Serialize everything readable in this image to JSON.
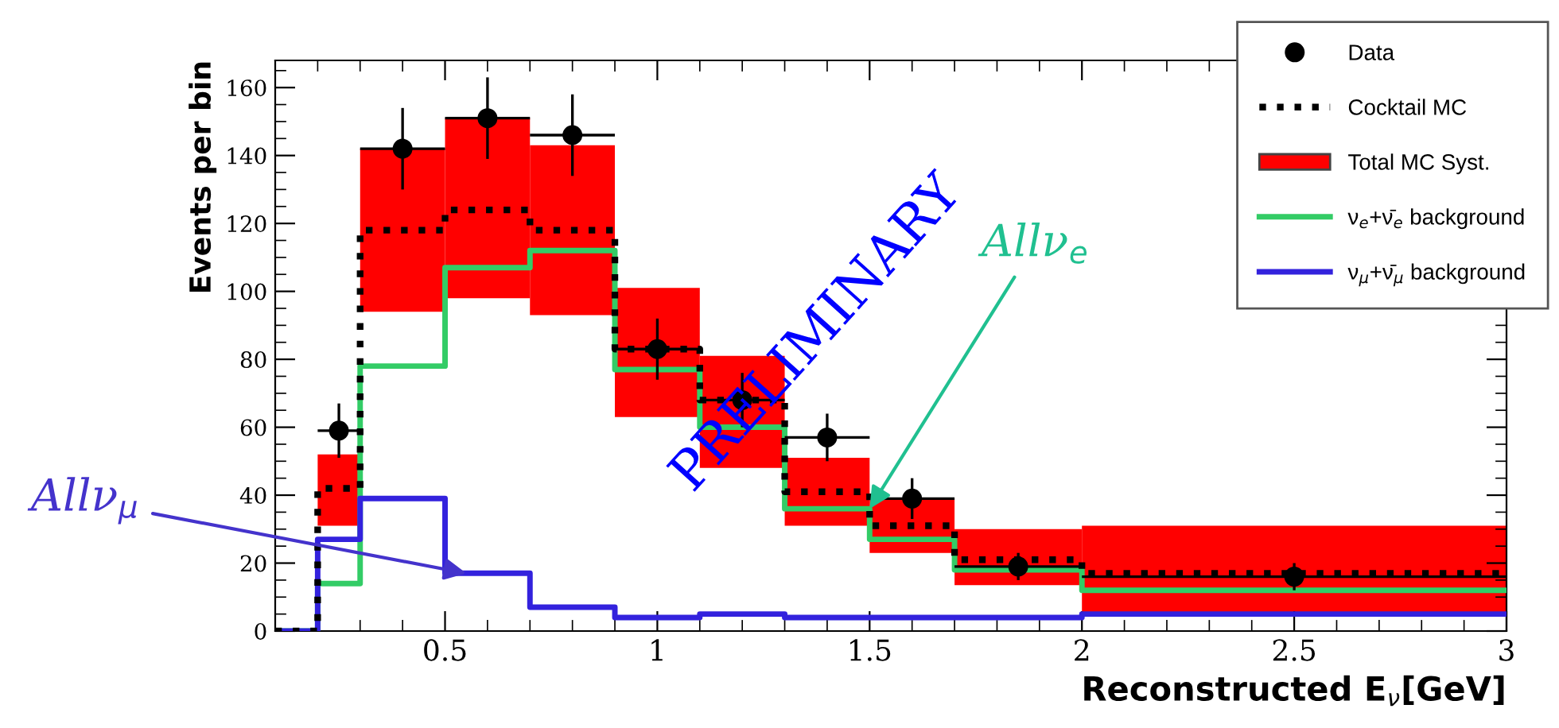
{
  "chart_data": {
    "type": "histogram",
    "xlabel": "Reconstructed E$_{ν}$[GeV]",
    "ylabel": "Events per bin",
    "bins": [
      0.2,
      0.3,
      0.5,
      0.7,
      0.9,
      1.1,
      1.3,
      1.5,
      1.7,
      2.0,
      3.0
    ],
    "xlim": [
      0.1,
      3
    ],
    "xticks": [
      0.5,
      1,
      1.5,
      2,
      2.5,
      3
    ],
    "ylim": [
      0,
      168
    ],
    "yticks": [
      0,
      20,
      40,
      60,
      80,
      100,
      120,
      140,
      160
    ],
    "grid": false,
    "legend": "top right",
    "series": [
      {
        "name": "Data",
        "type": "scatter",
        "color": "#000000",
        "marker": "circle",
        "x": [
          0.25,
          0.4,
          0.6,
          0.8,
          1.0,
          1.2,
          1.4,
          1.6,
          1.85,
          2.5
        ],
        "values": [
          59,
          142,
          151,
          146,
          83,
          68,
          57,
          39,
          19,
          16
        ],
        "errors": [
          8,
          12,
          12,
          12,
          9,
          8,
          7,
          6,
          4,
          4
        ],
        "xerrors": [
          0.05,
          0.1,
          0.1,
          0.1,
          0.1,
          0.1,
          0.1,
          0.1,
          0.15,
          0.5
        ]
      },
      {
        "name": "Cocktail MC",
        "type": "step",
        "color": "#000000",
        "line_style": "dotted",
        "x": [
          0.1,
          0.2,
          0.3,
          0.5,
          0.7,
          0.9,
          1.1,
          1.3,
          1.5,
          1.7,
          2.0,
          3.0
        ],
        "values": [
          0,
          42,
          118,
          124,
          118,
          83,
          68,
          41,
          31,
          21,
          17,
          17
        ]
      },
      {
        "name": "Total MC Syst.",
        "type": "histogram",
        "color": "#ff0000",
        "base": [
          31,
          94,
          98,
          93,
          63,
          48,
          31,
          23,
          13.5,
          5
        ],
        "values": [
          21,
          48,
          53,
          50,
          38,
          33,
          20,
          16,
          16.5,
          26
        ]
      },
      {
        "name": "ν$_{e}$+ν̄$_{e}$ background",
        "type": "step",
        "color": "#33cc66",
        "line_style": "solid",
        "x": [
          0.1,
          0.2,
          0.3,
          0.5,
          0.7,
          0.9,
          1.1,
          1.3,
          1.5,
          1.7,
          2.0,
          3.0
        ],
        "values": [
          0,
          14,
          78,
          107,
          112,
          77,
          60,
          36,
          27,
          18,
          12,
          12
        ]
      },
      {
        "name": "ν$_{μ}$+ν̄$_{μ}$ background",
        "type": "step",
        "color": "#3322dd",
        "line_style": "solid",
        "x": [
          0.1,
          0.2,
          0.3,
          0.5,
          0.7,
          0.9,
          1.1,
          1.3,
          1.5,
          1.7,
          2.0,
          3.0
        ],
        "values": [
          0,
          27,
          39,
          17,
          7,
          4,
          5,
          4,
          4,
          4,
          5,
          5
        ]
      }
    ],
    "annotations": [
      "PRELIMINARY",
      {
        "text": "Allν$_{e}$",
        "x": 1.5,
        "y": 36
      },
      {
        "text": "Allν$_{μ}$",
        "x": 0.55,
        "y": 17
      }
    ]
  }
}
